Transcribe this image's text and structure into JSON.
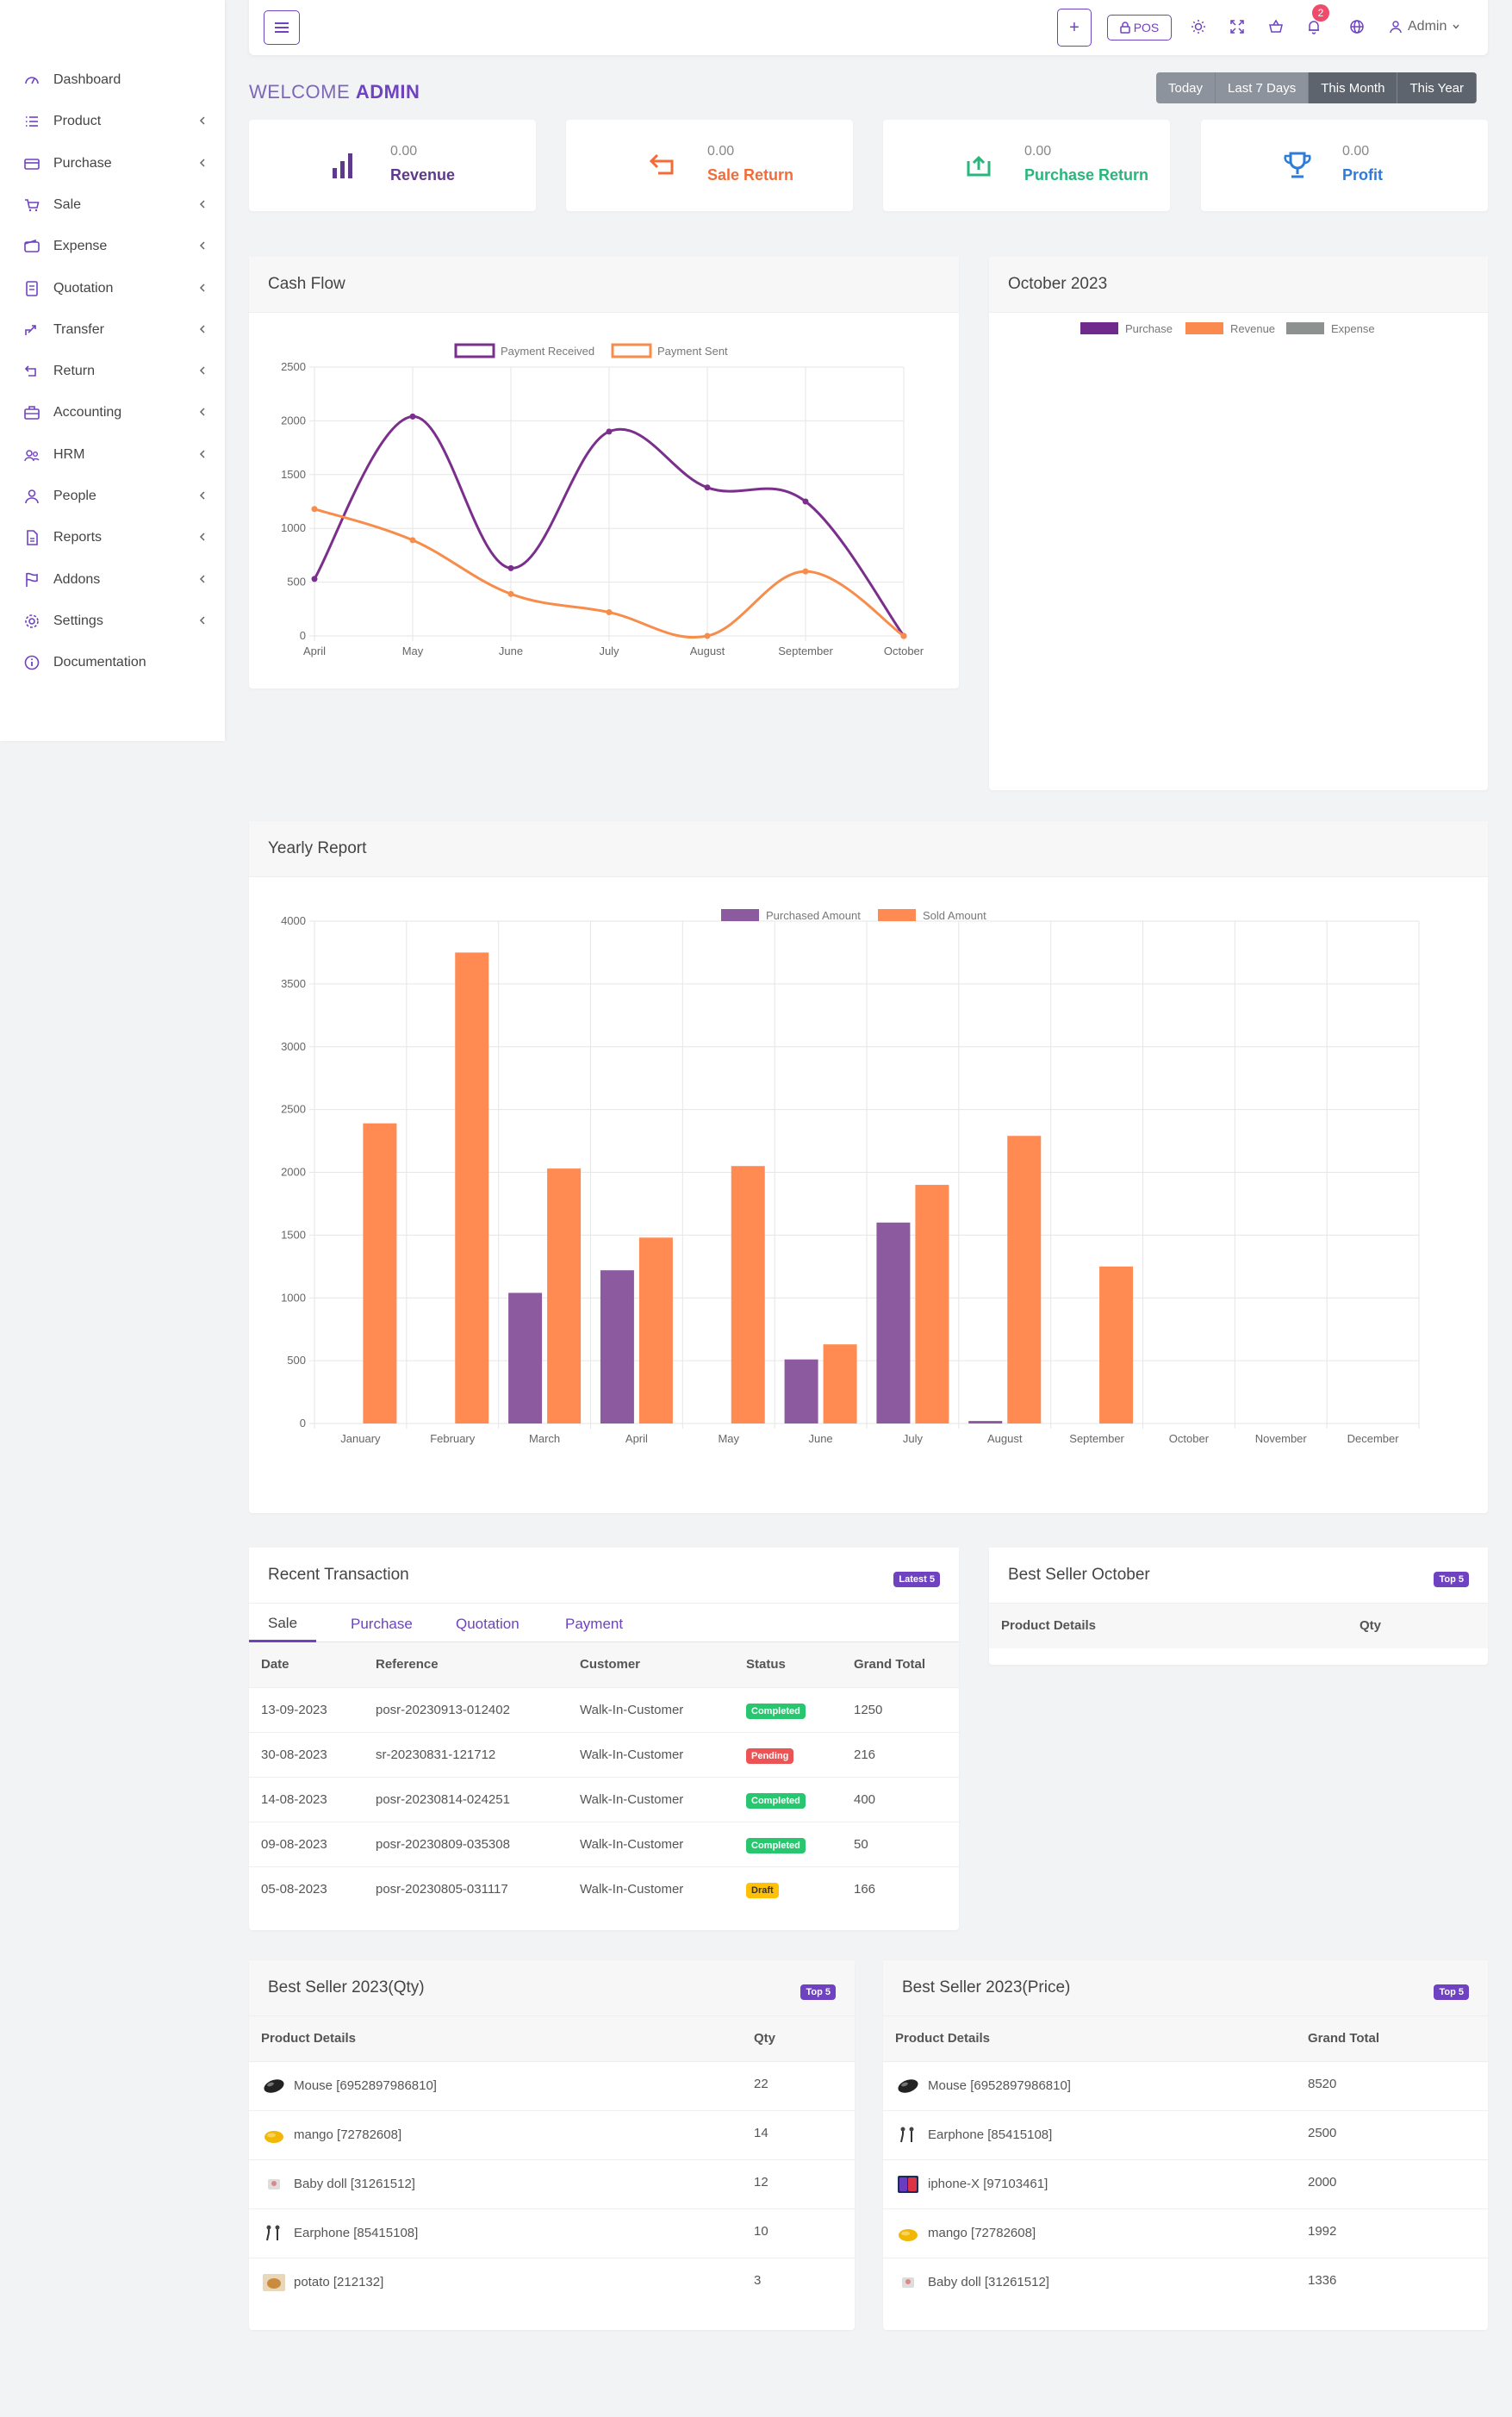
{
  "sidebar": {
    "items": [
      {
        "label": "Dashboard",
        "icon": "gauge-icon",
        "chevron": false
      },
      {
        "label": "Product",
        "icon": "list-icon",
        "chevron": true
      },
      {
        "label": "Purchase",
        "icon": "card-icon",
        "chevron": true
      },
      {
        "label": "Sale",
        "icon": "cart-icon",
        "chevron": true
      },
      {
        "label": "Expense",
        "icon": "wallet-icon",
        "chevron": true
      },
      {
        "label": "Quotation",
        "icon": "document-icon",
        "chevron": true
      },
      {
        "label": "Transfer",
        "icon": "transfer-icon",
        "chevron": true
      },
      {
        "label": "Return",
        "icon": "return-icon",
        "chevron": true
      },
      {
        "label": "Accounting",
        "icon": "briefcase-icon",
        "chevron": true
      },
      {
        "label": "HRM",
        "icon": "users-icon",
        "chevron": true
      },
      {
        "label": "People",
        "icon": "user-icon",
        "chevron": true
      },
      {
        "label": "Reports",
        "icon": "report-icon",
        "chevron": true
      },
      {
        "label": "Addons",
        "icon": "flag-icon",
        "chevron": true
      },
      {
        "label": "Settings",
        "icon": "gear-icon",
        "chevron": true
      },
      {
        "label": "Documentation",
        "icon": "info-icon",
        "chevron": false
      }
    ]
  },
  "topbar": {
    "plus_label": "+",
    "pos_label": "POS",
    "notification_count": "2",
    "user_label": "Admin"
  },
  "welcome": {
    "prefix": "WELCOME",
    "name": "ADMIN"
  },
  "date_ranges": [
    {
      "label": "Today",
      "active": false
    },
    {
      "label": "Last 7 Days",
      "active": false
    },
    {
      "label": "This Month",
      "active": true
    },
    {
      "label": "This Year",
      "active": true
    }
  ],
  "stats": [
    {
      "value": "0.00",
      "label": "Revenue",
      "color": "#5e3a8c",
      "icon": "bar-chart-icon"
    },
    {
      "value": "0.00",
      "label": "Sale Return",
      "color": "#f26c3a",
      "icon": "return-arrow-icon"
    },
    {
      "value": "0.00",
      "label": "Purchase Return",
      "color": "#28b67a",
      "icon": "purchase-return-icon"
    },
    {
      "value": "0.00",
      "label": "Profit",
      "color": "#2f7bd9",
      "icon": "trophy-icon"
    }
  ],
  "cash_flow": {
    "title": "Cash Flow",
    "chart_data": {
      "type": "line",
      "categories": [
        "April",
        "May",
        "June",
        "July",
        "August",
        "September",
        "October"
      ],
      "series": [
        {
          "name": "Payment Received",
          "color": "#7b2f8c",
          "values": [
            530,
            2040,
            630,
            1900,
            1380,
            1250,
            0
          ]
        },
        {
          "name": "Payment Sent",
          "color": "#f78c4b",
          "values": [
            1180,
            890,
            390,
            220,
            0,
            600,
            0
          ]
        }
      ],
      "ylim": [
        0,
        2500
      ],
      "yticks": [
        0,
        500,
        1000,
        1500,
        2000,
        2500
      ],
      "legend": "top",
      "grid": true
    }
  },
  "month_panel": {
    "title": "October 2023",
    "legend": [
      {
        "name": "Purchase",
        "color": "#6f2b8c"
      },
      {
        "name": "Revenue",
        "color": "#fb8a4f"
      },
      {
        "name": "Expense",
        "color": "#8d918f"
      }
    ]
  },
  "yearly_report": {
    "title": "Yearly Report",
    "chart_data": {
      "type": "bar",
      "categories": [
        "January",
        "February",
        "March",
        "April",
        "May",
        "June",
        "July",
        "August",
        "September",
        "October",
        "November",
        "December"
      ],
      "series": [
        {
          "name": "Purchased Amount",
          "color": "#8c5a9e",
          "values": [
            0,
            0,
            1040,
            1220,
            0,
            510,
            1600,
            20,
            0,
            0,
            0,
            0
          ]
        },
        {
          "name": "Sold Amount",
          "color": "#ff8a52",
          "values": [
            2390,
            3750,
            2030,
            1480,
            2050,
            630,
            1900,
            2290,
            1250,
            0,
            0,
            0
          ]
        }
      ],
      "ylim": [
        0,
        4000
      ],
      "yticks": [
        0,
        500,
        1000,
        1500,
        2000,
        2500,
        3000,
        3500,
        4000
      ],
      "legend": "top",
      "grid": true
    }
  },
  "recent": {
    "title": "Recent Transaction",
    "badge": "Latest 5",
    "tabs": [
      "Sale",
      "Purchase",
      "Quotation",
      "Payment"
    ],
    "columns": [
      "Date",
      "Reference",
      "Customer",
      "Status",
      "Grand Total"
    ],
    "rows": [
      {
        "date": "13-09-2023",
        "reference": "posr-20230913-012402",
        "customer": "Walk-In-Customer",
        "status": "Completed",
        "total": "1250"
      },
      {
        "date": "30-08-2023",
        "reference": "sr-20230831-121712",
        "customer": "Walk-In-Customer",
        "status": "Pending",
        "total": "216"
      },
      {
        "date": "14-08-2023",
        "reference": "posr-20230814-024251",
        "customer": "Walk-In-Customer",
        "status": "Completed",
        "total": "400"
      },
      {
        "date": "09-08-2023",
        "reference": "posr-20230809-035308",
        "customer": "Walk-In-Customer",
        "status": "Completed",
        "total": "50"
      },
      {
        "date": "05-08-2023",
        "reference": "posr-20230805-031117",
        "customer": "Walk-In-Customer",
        "status": "Draft",
        "total": "166"
      }
    ]
  },
  "best_month": {
    "title": "Best Seller October",
    "badge": "Top 5",
    "columns": [
      "Product Details",
      "Qty"
    ]
  },
  "best_qty": {
    "title": "Best Seller 2023(Qty)",
    "badge": "Top 5",
    "columns": [
      "Product Details",
      "Qty"
    ],
    "rows": [
      {
        "product": "Mouse [6952897986810]",
        "value": "22",
        "icon": "mouse-icon"
      },
      {
        "product": "mango [72782608]",
        "value": "14",
        "icon": "mango-icon"
      },
      {
        "product": "Baby doll [31261512]",
        "value": "12",
        "icon": "doll-icon"
      },
      {
        "product": "Earphone [85415108]",
        "value": "10",
        "icon": "earphone-icon"
      },
      {
        "product": "potato [212132]",
        "value": "3",
        "icon": "potato-icon"
      }
    ]
  },
  "best_price": {
    "title": "Best Seller 2023(Price)",
    "badge": "Top 5",
    "columns": [
      "Product Details",
      "Grand Total"
    ],
    "rows": [
      {
        "product": "Mouse [6952897986810]",
        "value": "8520",
        "icon": "mouse-icon"
      },
      {
        "product": "Earphone [85415108]",
        "value": "2500",
        "icon": "earphone-icon"
      },
      {
        "product": "iphone-X [97103461]",
        "value": "2000",
        "icon": "phone-icon"
      },
      {
        "product": "mango [72782608]",
        "value": "1992",
        "icon": "mango-icon"
      },
      {
        "product": "Baby doll [31261512]",
        "value": "1336",
        "icon": "doll-icon"
      }
    ]
  }
}
